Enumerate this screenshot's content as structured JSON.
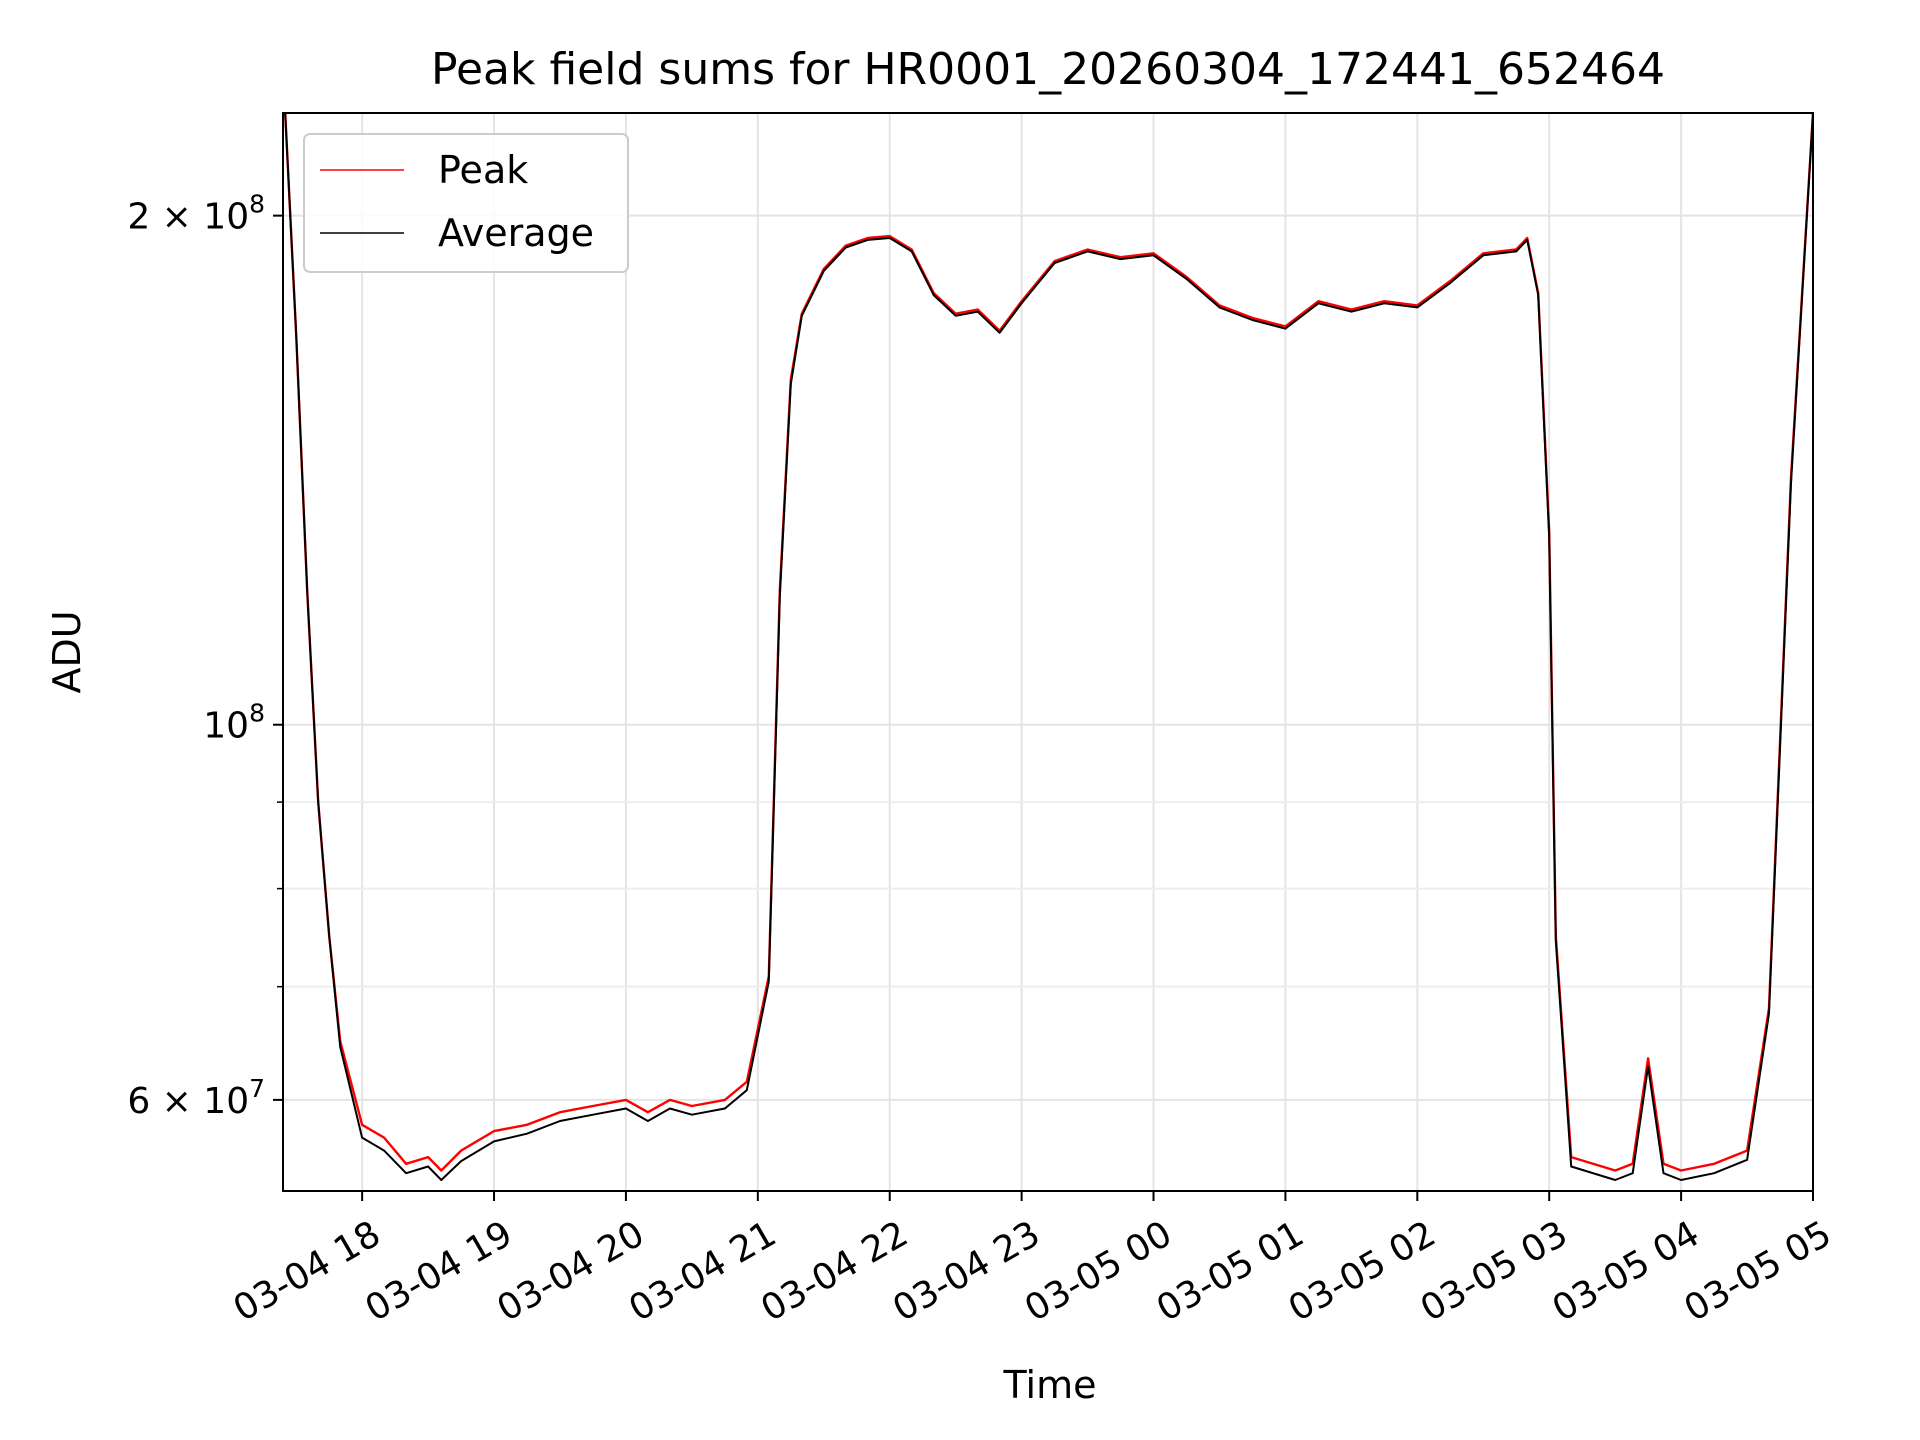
{
  "chart_data": {
    "type": "line",
    "title": "Peak field sums for HR0001_20260304_172441_652464",
    "xlabel": "Time",
    "ylabel": "ADU",
    "yscale": "log",
    "ylim": [
      53000000,
      230000000
    ],
    "xlim": [
      "03-04 17:24",
      "03-05 05:00"
    ],
    "grid": true,
    "legend_position": "upper-left",
    "x_ticks": [
      "03-04 18",
      "03-04 19",
      "03-04 20",
      "03-04 21",
      "03-04 22",
      "03-04 23",
      "03-05 00",
      "03-05 01",
      "03-05 02",
      "03-05 03",
      "03-05 04",
      "03-05 05"
    ],
    "y_ticks": [
      {
        "value": 60000000,
        "base": "6 × 10",
        "exp": "7"
      },
      {
        "value": 100000000,
        "base": "10",
        "exp": "8"
      },
      {
        "value": 200000000,
        "base": "2 × 10",
        "exp": "8"
      }
    ],
    "y_minor_ticks": [
      70000000,
      80000000,
      90000000
    ],
    "series": [
      {
        "name": "Peak",
        "color": "#ff0000"
      },
      {
        "name": "Average",
        "color": "#000000"
      }
    ],
    "x": [
      "03-04 17:25",
      "03-04 17:30",
      "03-04 17:35",
      "03-04 17:40",
      "03-04 17:45",
      "03-04 17:50",
      "03-04 18:00",
      "03-04 18:10",
      "03-04 18:20",
      "03-04 18:30",
      "03-04 18:36",
      "03-04 18:45",
      "03-04 19:00",
      "03-04 19:15",
      "03-04 19:30",
      "03-04 19:45",
      "03-04 20:00",
      "03-04 20:10",
      "03-04 20:20",
      "03-04 20:30",
      "03-04 20:45",
      "03-04 20:55",
      "03-04 21:05",
      "03-04 21:10",
      "03-04 21:15",
      "03-04 21:20",
      "03-04 21:30",
      "03-04 21:40",
      "03-04 21:50",
      "03-04 22:00",
      "03-04 22:10",
      "03-04 22:20",
      "03-04 22:30",
      "03-04 22:40",
      "03-04 22:50",
      "03-04 23:00",
      "03-04 23:15",
      "03-04 23:30",
      "03-04 23:45",
      "03-05 00:00",
      "03-05 00:15",
      "03-05 00:30",
      "03-05 00:45",
      "03-05 01:00",
      "03-05 01:15",
      "03-05 01:30",
      "03-05 01:45",
      "03-05 02:00",
      "03-05 02:15",
      "03-05 02:30",
      "03-05 02:45",
      "03-05 02:50",
      "03-05 02:55",
      "03-05 03:00",
      "03-05 03:03",
      "03-05 03:10",
      "03-05 03:30",
      "03-05 03:38",
      "03-05 03:45",
      "03-05 03:52",
      "03-05 04:00",
      "03-05 04:15",
      "03-05 04:30",
      "03-05 04:40",
      "03-05 04:50",
      "03-05 05:00"
    ],
    "peak": [
      230000000,
      170000000,
      120000000,
      90000000,
      75000000,
      65000000,
      58000000,
      57000000,
      55000000,
      55500000,
      54500000,
      56000000,
      57500000,
      58000000,
      59000000,
      59500000,
      60000000,
      59000000,
      60000000,
      59500000,
      60000000,
      61500000,
      71000000,
      120000000,
      160000000,
      175000000,
      186000000,
      192000000,
      194000000,
      194500000,
      191000000,
      180000000,
      175000000,
      176000000,
      171000000,
      178000000,
      188000000,
      191000000,
      189000000,
      190000000,
      184000000,
      177000000,
      174000000,
      172000000,
      178000000,
      176000000,
      178000000,
      177000000,
      183000000,
      190000000,
      191000000,
      194000000,
      180000000,
      130000000,
      75000000,
      55500000,
      54500000,
      55000000,
      63500000,
      55000000,
      54500000,
      55000000,
      56000000,
      68000000,
      140000000,
      230000000
    ],
    "average": [
      230000000,
      170000000,
      120000000,
      90000000,
      75000000,
      64500000,
      57000000,
      56000000,
      54300000,
      54800000,
      53800000,
      55200000,
      56700000,
      57300000,
      58300000,
      58800000,
      59300000,
      58300000,
      59300000,
      58800000,
      59300000,
      60800000,
      70500000,
      119000000,
      159000000,
      174500000,
      185500000,
      191500000,
      193500000,
      194000000,
      190500000,
      179500000,
      174500000,
      175500000,
      170500000,
      177500000,
      187500000,
      190500000,
      188500000,
      189500000,
      183500000,
      176500000,
      173500000,
      171500000,
      177500000,
      175500000,
      177500000,
      176500000,
      182500000,
      189500000,
      190500000,
      193500000,
      179500000,
      129000000,
      74500000,
      54800000,
      53800000,
      54300000,
      62800000,
      54300000,
      53800000,
      54300000,
      55300000,
      67500000,
      139000000,
      230000000
    ]
  }
}
